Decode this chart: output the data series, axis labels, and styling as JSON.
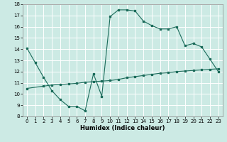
{
  "xlabel": "Humidex (Indice chaleur)",
  "bg_color": "#cceae4",
  "grid_color": "#ffffff",
  "line_color": "#1a6b5a",
  "xlim_min": -0.5,
  "xlim_max": 23.5,
  "ylim_min": 8,
  "ylim_max": 18,
  "xticks": [
    0,
    1,
    2,
    3,
    4,
    5,
    6,
    7,
    8,
    9,
    10,
    11,
    12,
    13,
    14,
    15,
    16,
    17,
    18,
    19,
    20,
    21,
    22,
    23
  ],
  "yticks": [
    8,
    9,
    10,
    11,
    12,
    13,
    14,
    15,
    16,
    17,
    18
  ],
  "line1_x": [
    0,
    1,
    2,
    3,
    4,
    5,
    6,
    7,
    8,
    9,
    10,
    11,
    12,
    13,
    14,
    15,
    16,
    17,
    18,
    19,
    20,
    21,
    22,
    23
  ],
  "line1_y": [
    14.1,
    12.8,
    11.5,
    10.3,
    9.5,
    8.9,
    8.9,
    8.5,
    11.8,
    9.8,
    16.9,
    17.5,
    17.5,
    17.4,
    16.5,
    16.1,
    15.8,
    15.8,
    16.0,
    14.3,
    14.5,
    14.2,
    13.1,
    12.0
  ],
  "line2_x": [
    0,
    2,
    3,
    4,
    5,
    6,
    7,
    8,
    9,
    10,
    11,
    12,
    13,
    14,
    15,
    16,
    17,
    18,
    19,
    20,
    21,
    22,
    23
  ],
  "line2_y": [
    10.5,
    10.7,
    10.8,
    10.85,
    10.9,
    10.95,
    11.05,
    11.1,
    11.15,
    11.2,
    11.3,
    11.45,
    11.55,
    11.65,
    11.75,
    11.85,
    11.9,
    12.0,
    12.05,
    12.1,
    12.15,
    12.2,
    12.25
  ],
  "xlabel_fontsize": 6,
  "tick_fontsize": 5,
  "marker_size": 2.0
}
